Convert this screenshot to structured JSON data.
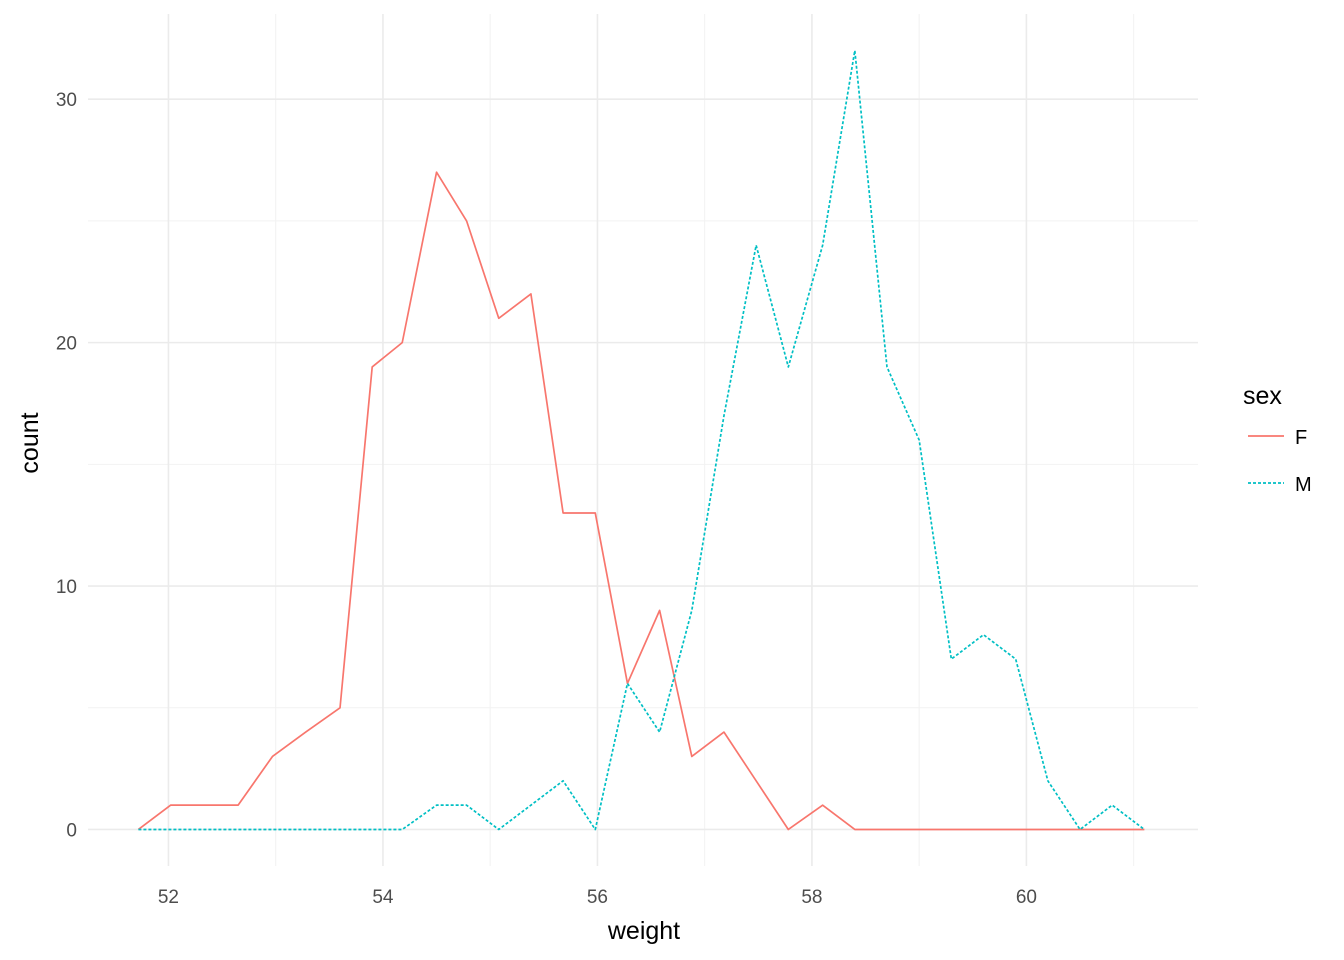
{
  "chart_data": {
    "type": "line",
    "xlabel": "weight",
    "ylabel": "count",
    "xlim": [
      51.25,
      61.6
    ],
    "ylim": [
      -1.5,
      33.5
    ],
    "x_ticks": [
      52,
      54,
      56,
      58,
      60
    ],
    "y_ticks": [
      0,
      10,
      20,
      30
    ],
    "grid": true,
    "legend": {
      "title": "sex",
      "position": "right"
    },
    "series": [
      {
        "name": "F",
        "color": "#F8766D",
        "dash": "solid",
        "points": [
          [
            51.72,
            0
          ],
          [
            52.02,
            1
          ],
          [
            52.33,
            1
          ],
          [
            52.65,
            1
          ],
          [
            52.97,
            3
          ],
          [
            53.28,
            4
          ],
          [
            53.6,
            5
          ],
          [
            53.9,
            19
          ],
          [
            54.18,
            20
          ],
          [
            54.5,
            27
          ],
          [
            54.78,
            25
          ],
          [
            55.08,
            21
          ],
          [
            55.38,
            22
          ],
          [
            55.68,
            13
          ],
          [
            55.98,
            13
          ],
          [
            56.28,
            6
          ],
          [
            56.58,
            9
          ],
          [
            56.88,
            3
          ],
          [
            57.18,
            4
          ],
          [
            57.48,
            2
          ],
          [
            57.78,
            0
          ],
          [
            58.1,
            1
          ],
          [
            58.4,
            0
          ],
          [
            58.7,
            0
          ],
          [
            59.0,
            0
          ],
          [
            59.3,
            0
          ],
          [
            59.6,
            0
          ],
          [
            59.9,
            0
          ],
          [
            60.2,
            0
          ],
          [
            60.5,
            0
          ],
          [
            60.8,
            0
          ],
          [
            61.1,
            0
          ]
        ]
      },
      {
        "name": "M",
        "color": "#00BFC4",
        "dash": "dotted",
        "points": [
          [
            51.72,
            0
          ],
          [
            52.02,
            0
          ],
          [
            52.33,
            0
          ],
          [
            52.65,
            0
          ],
          [
            52.97,
            0
          ],
          [
            53.28,
            0
          ],
          [
            53.6,
            0
          ],
          [
            53.9,
            0
          ],
          [
            54.18,
            0
          ],
          [
            54.5,
            1
          ],
          [
            54.78,
            1
          ],
          [
            55.08,
            0
          ],
          [
            55.38,
            1
          ],
          [
            55.68,
            2
          ],
          [
            55.98,
            0
          ],
          [
            56.28,
            6
          ],
          [
            56.58,
            4
          ],
          [
            56.88,
            9
          ],
          [
            57.18,
            17
          ],
          [
            57.48,
            24
          ],
          [
            57.78,
            19
          ],
          [
            58.1,
            24
          ],
          [
            58.4,
            32
          ],
          [
            58.7,
            19
          ],
          [
            59.0,
            16
          ],
          [
            59.3,
            7
          ],
          [
            59.6,
            8
          ],
          [
            59.9,
            7
          ],
          [
            60.2,
            2
          ],
          [
            60.5,
            0
          ],
          [
            60.8,
            1
          ],
          [
            61.1,
            0
          ]
        ]
      }
    ]
  }
}
